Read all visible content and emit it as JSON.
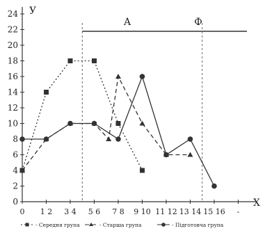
{
  "chart_data": {
    "type": "line",
    "x_axis_label": "X",
    "y_axis_label": "У",
    "x_ticks": [
      "0",
      "1 2",
      "3 4",
      "5 6",
      "7 8",
      "9 10",
      "11 12",
      "13 14",
      "15 16",
      "-"
    ],
    "y_ticks": [
      0,
      2,
      4,
      6,
      8,
      10,
      12,
      14,
      16,
      18,
      20,
      22,
      24
    ],
    "ylim": [
      0,
      24
    ],
    "grid": false,
    "legend_position": "bottom",
    "zones": [
      {
        "label": "А",
        "x_start": 2.5,
        "x_end": 7.5
      },
      {
        "label": "Ф",
        "x_start": 7.5,
        "x_end": 9.5
      }
    ],
    "series": [
      {
        "name": "Середня група",
        "marker": "square",
        "line_style": "dotted",
        "points": [
          [
            0,
            4
          ],
          [
            1,
            14
          ],
          [
            2,
            18
          ],
          [
            3,
            18
          ],
          [
            4,
            10
          ],
          [
            5,
            4
          ]
        ]
      },
      {
        "name": "Старша група",
        "marker": "triangle",
        "line_style": "dashed",
        "points": [
          [
            0,
            4
          ],
          [
            1,
            8
          ],
          [
            2,
            10
          ],
          [
            3,
            10
          ],
          [
            3.6,
            8
          ],
          [
            4,
            16
          ],
          [
            5,
            10
          ],
          [
            6,
            6
          ],
          [
            7,
            6
          ]
        ]
      },
      {
        "name": "Підготовча група",
        "marker": "circle",
        "line_style": "solid",
        "points": [
          [
            0,
            8
          ],
          [
            1,
            8
          ],
          [
            2,
            10
          ],
          [
            3,
            10
          ],
          [
            4,
            8
          ],
          [
            5,
            16
          ],
          [
            6,
            6
          ],
          [
            7,
            8
          ],
          [
            8,
            2
          ]
        ]
      }
    ]
  }
}
